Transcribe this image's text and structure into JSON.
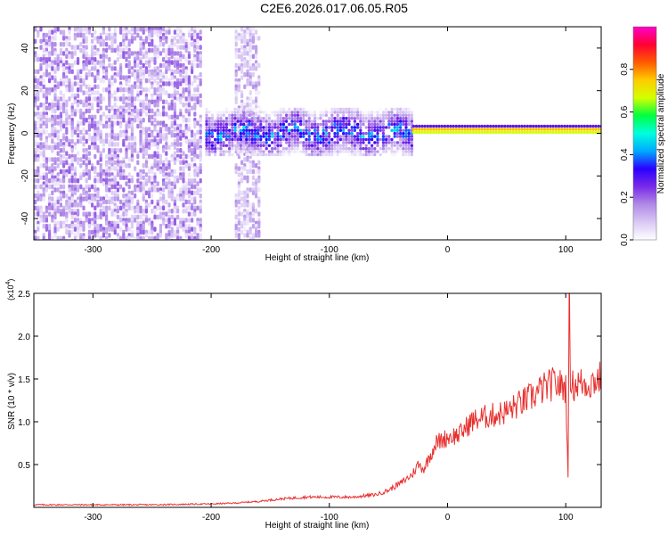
{
  "figure_title": "C2E6.2026.017.06.05.R05",
  "colors": {
    "snr_line": "#e8302e",
    "axis": "#000000",
    "colormap": [
      "#ffffff",
      "#d9c8f5",
      "#b08ae6",
      "#7a2ae8",
      "#2a00ff",
      "#00aaff",
      "#00ffdd",
      "#00ff40",
      "#d4ff00",
      "#ffcc00",
      "#ff5a00",
      "#ff0033",
      "#ff00cc"
    ]
  },
  "chart_data": [
    {
      "type": "heatmap",
      "title": "",
      "xlabel": "Height of straight line (km)",
      "ylabel": "Frequency (Hz)",
      "xlim": [
        -350,
        130
      ],
      "ylim": [
        -50,
        50
      ],
      "xticks": [
        -300,
        -200,
        -100,
        0,
        100
      ],
      "xtick_labels": [
        "-300",
        "-200",
        "-100",
        "0",
        "100"
      ],
      "yticks": [
        -40,
        -20,
        0,
        20,
        40
      ],
      "ytick_labels": [
        "-40",
        "-20",
        "0",
        "20",
        "40"
      ],
      "colorbar": {
        "label": "Normalized spectral amplitude",
        "range": [
          0,
          1
        ],
        "ticks": [
          0.0,
          0.2,
          0.4,
          0.6,
          0.8
        ],
        "tick_labels": [
          "0.0",
          "0.2",
          "0.4",
          "0.6",
          "0.8"
        ]
      },
      "regions": [
        {
          "name": "broadband noise",
          "x_range": [
            -350,
            -210
          ],
          "freq_range": [
            -50,
            50
          ],
          "amplitude": 0.15
        },
        {
          "name": "broadband noise",
          "x_range": [
            -180,
            -160
          ],
          "freq_range": [
            -50,
            50
          ],
          "amplitude": 0.12
        },
        {
          "name": "narrowband signal",
          "x_range": [
            -205,
            -30
          ],
          "freq_range": [
            -10,
            12
          ],
          "amplitude": 0.3
        },
        {
          "name": "carrier line",
          "x_range": [
            -30,
            130
          ],
          "freq_range": [
            0,
            4
          ],
          "amplitude": 0.95
        }
      ]
    },
    {
      "type": "line",
      "title": "",
      "xlabel": "Height of straight line (km)",
      "ylabel": "SNR (10 * v/v)",
      "y_scale_label": "(x10",
      "y_scale_exponent": "4",
      "y_scale_suffix": ")",
      "xlim": [
        -350,
        130
      ],
      "ylim": [
        0,
        2.5
      ],
      "xticks": [
        -300,
        -200,
        -100,
        0,
        100
      ],
      "xtick_labels": [
        "-300",
        "-200",
        "-100",
        "0",
        "100"
      ],
      "yticks": [
        0.5,
        1.0,
        1.5,
        2.0,
        2.5
      ],
      "ytick_labels": [
        "0.5",
        "1.0",
        "1.5",
        "2.0",
        "2.5"
      ],
      "series": [
        {
          "name": "SNR",
          "x": [
            -350,
            -300,
            -250,
            -200,
            -180,
            -160,
            -140,
            -120,
            -100,
            -80,
            -60,
            -50,
            -40,
            -30,
            -25,
            -20,
            -15,
            -10,
            0,
            10,
            20,
            30,
            40,
            50,
            60,
            70,
            80,
            90,
            100,
            102,
            103,
            104,
            106,
            110,
            120,
            130
          ],
          "y": [
            0.03,
            0.03,
            0.03,
            0.04,
            0.05,
            0.07,
            0.1,
            0.12,
            0.12,
            0.12,
            0.15,
            0.2,
            0.28,
            0.38,
            0.5,
            0.45,
            0.6,
            0.75,
            0.82,
            0.85,
            1.0,
            1.05,
            1.08,
            1.12,
            1.2,
            1.28,
            1.38,
            1.45,
            1.4,
            0.4,
            2.5,
            1.55,
            1.42,
            1.45,
            1.45,
            1.52
          ]
        }
      ]
    }
  ]
}
